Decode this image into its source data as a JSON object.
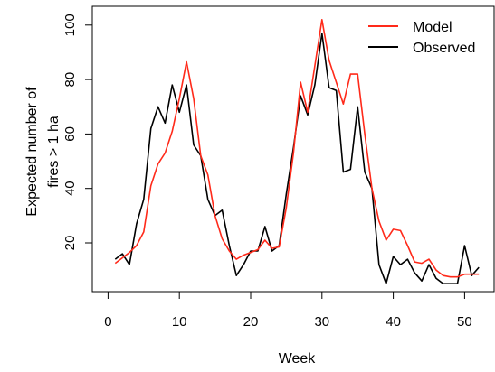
{
  "chart_data": {
    "type": "line",
    "title": "",
    "xlabel": "Week",
    "ylabel_lines": [
      "Expected number of",
      "fires > 1 ha"
    ],
    "xlim": [
      0,
      53
    ],
    "ylim": [
      0,
      105
    ],
    "x_ticks": [
      0,
      10,
      20,
      30,
      40,
      50
    ],
    "y_ticks": [
      20,
      40,
      60,
      80,
      100
    ],
    "grid": false,
    "legend_position": "top-right",
    "x": [
      1,
      2,
      3,
      4,
      5,
      6,
      7,
      8,
      9,
      10,
      11,
      12,
      13,
      14,
      15,
      16,
      17,
      18,
      19,
      20,
      21,
      22,
      23,
      24,
      25,
      26,
      27,
      28,
      29,
      30,
      31,
      32,
      33,
      34,
      35,
      36,
      37,
      38,
      39,
      40,
      41,
      42,
      43,
      44,
      45,
      46,
      47,
      48,
      49,
      50,
      51,
      52
    ],
    "series": [
      {
        "name": "Model",
        "color": "#ff2a1a",
        "values": [
          12.5,
          14.5,
          16.5,
          19,
          24,
          41,
          49,
          53,
          61,
          73,
          86.5,
          73,
          52,
          45,
          30,
          21.5,
          17,
          14,
          15.5,
          16.5,
          17.5,
          21,
          18,
          18.5,
          33,
          53,
          79,
          68,
          85,
          102,
          87,
          79,
          71,
          82,
          82,
          60,
          40,
          28,
          21,
          25,
          24.5,
          19,
          13,
          12.5,
          14,
          10,
          8,
          7.5,
          7.5,
          8.5,
          8.5,
          8.5
        ]
      },
      {
        "name": "Observed",
        "color": "#000000",
        "values": [
          14,
          16,
          12,
          27,
          36,
          62,
          70,
          64,
          78,
          68,
          78,
          56,
          52,
          36,
          30,
          32,
          19,
          8,
          12,
          17,
          17,
          26,
          17,
          19,
          38,
          55,
          74,
          67,
          78,
          97,
          77,
          76,
          46,
          47,
          70,
          46,
          40,
          12,
          5,
          15,
          12,
          14,
          9,
          6,
          12,
          7,
          5,
          5,
          5,
          19,
          8,
          11
        ]
      }
    ]
  }
}
